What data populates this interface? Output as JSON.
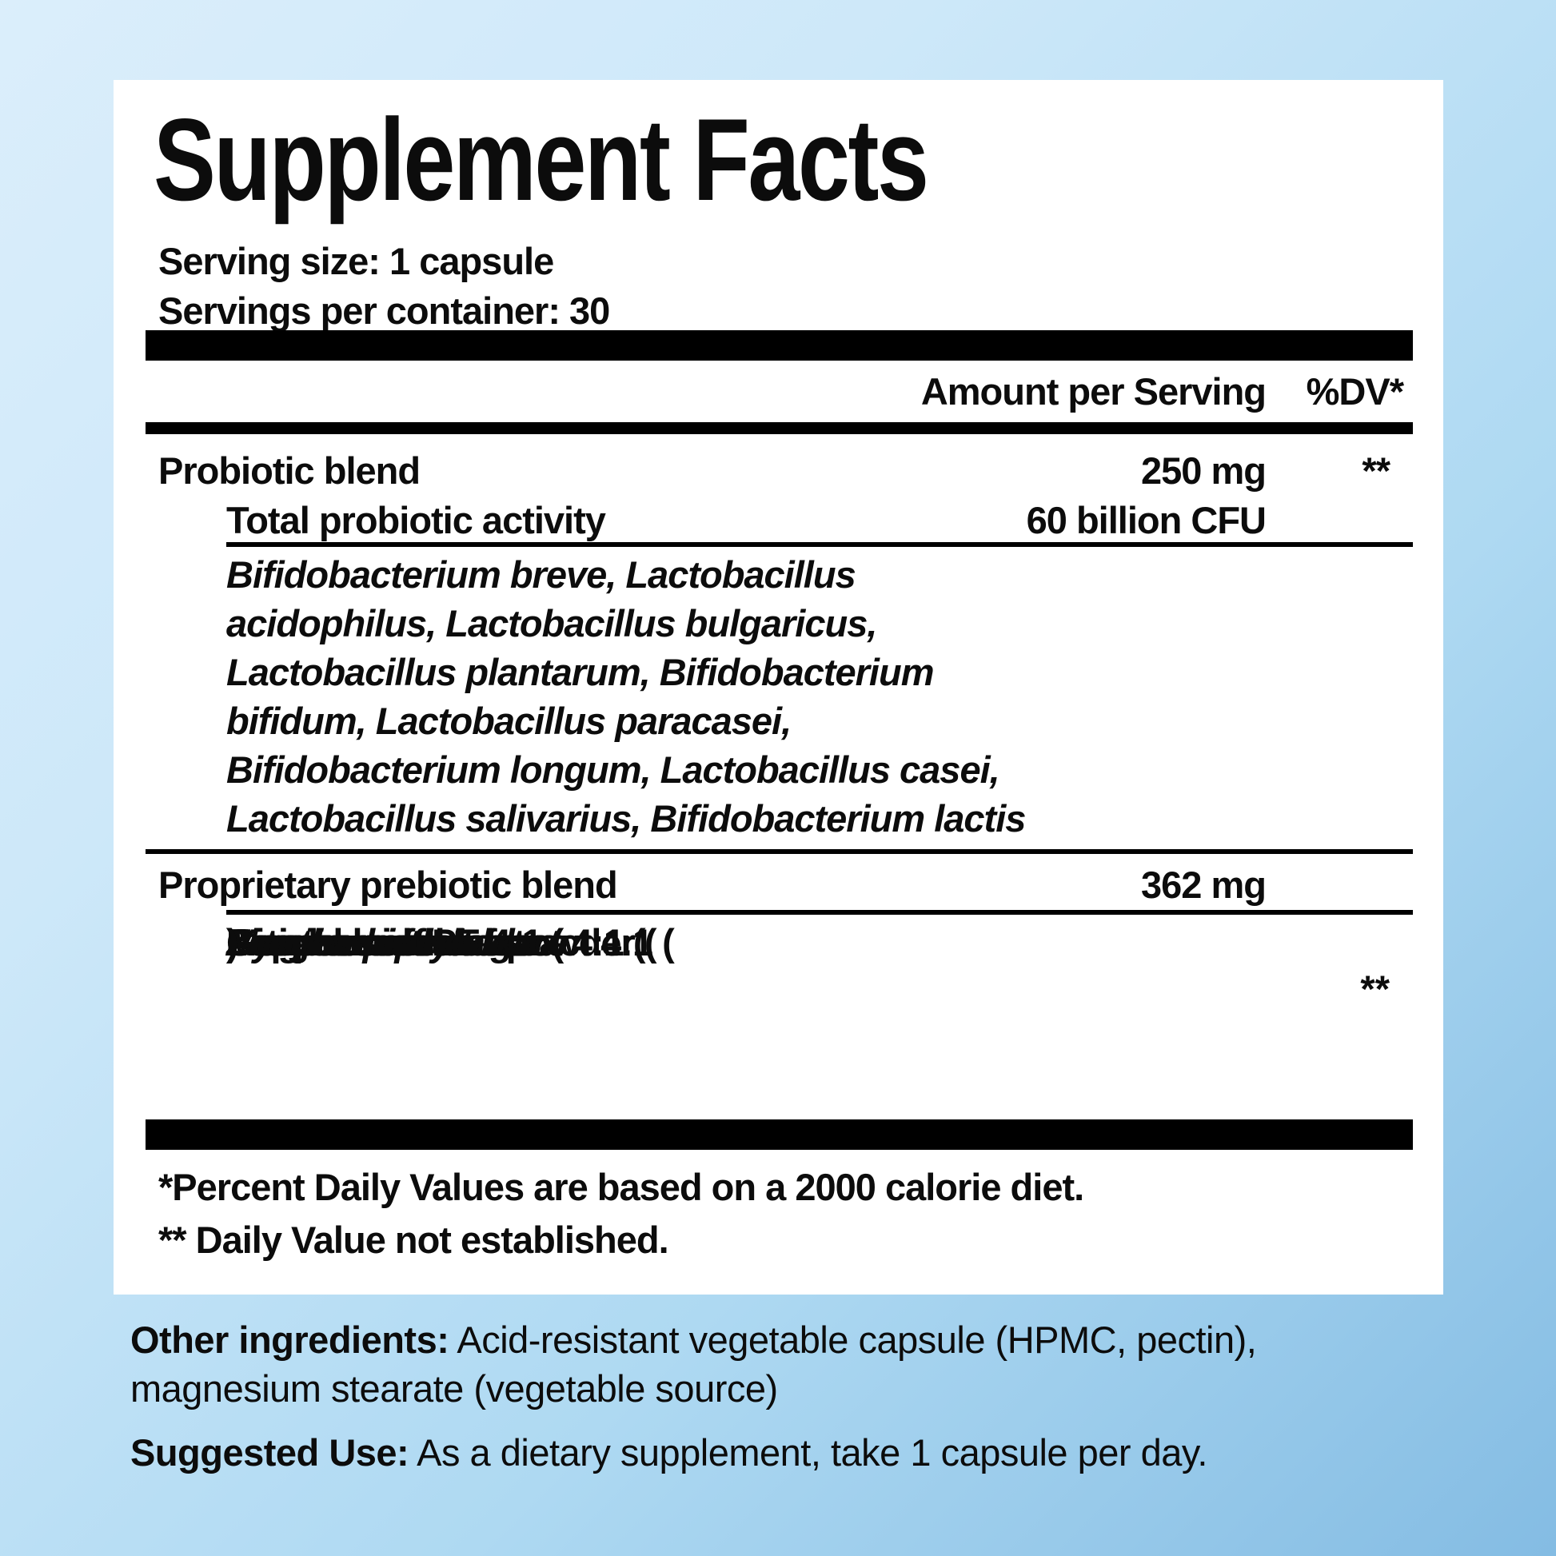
{
  "colors": {
    "background_top_left": "#dbeefb",
    "background_bottom_right": "#84bce3",
    "panel_background": "#ffffff",
    "text": "#0c0c0c",
    "divider": "#000000"
  },
  "panel": {
    "title": "Supplement Facts",
    "serving_size": "Serving size: 1 capsule",
    "servings_per_container": "Servings per container: 30",
    "header": {
      "amount": "Amount per Serving",
      "dv": "%DV*"
    },
    "probiotic": {
      "label": "Probiotic blend",
      "amount": "250 mg",
      "dv": "**",
      "sub_label": "Total probiotic activity",
      "sub_amount": "60 billion CFU",
      "species_lines": [
        "Bifidobacterium breve, Lactobacillus",
        "acidophilus, Lactobacillus bulgaricus,",
        "Lactobacillus plantarum, Bifidobacterium",
        "bifidum, Lactobacillus paracasei,",
        "Bifidobacterium longum, Lactobacillus casei,",
        "Lactobacillus salivarius, Bifidobacterium lactis"
      ]
    },
    "prebiotic": {
      "label": "Proprietary prebiotic blend",
      "amount": "362 mg",
      "dv": "**",
      "ingredients": [
        {
          "pre": "Ginger root PE 4:1 (",
          "sci": "Zingiber officinale",
          "post": ")"
        },
        {
          "pre": "Fennel seed extract 4:1 (",
          "sci": "Foeniculum vulgare",
          "post": ")"
        },
        {
          "pre": "Artichoke leaf extract 4:1 (",
          "sci": "Cynara scolymus",
          "post": ")"
        },
        {
          "pre": "Peppermint leaf powder (",
          "sci": "Mentha piperita",
          "post": ")"
        }
      ]
    },
    "footnotes": [
      "*Percent Daily Values are based on a 2000 calorie diet.",
      "** Daily Value not established."
    ]
  },
  "below_panel": {
    "other_ingredients": {
      "label": "Other ingredients:",
      "line1": " Acid-resistant vegetable capsule (HPMC, pectin),",
      "line2": "magnesium stearate (vegetable source)"
    },
    "suggested_use": {
      "label": "Suggested Use:",
      "text": " As a dietary supplement, take 1 capsule per day."
    }
  }
}
